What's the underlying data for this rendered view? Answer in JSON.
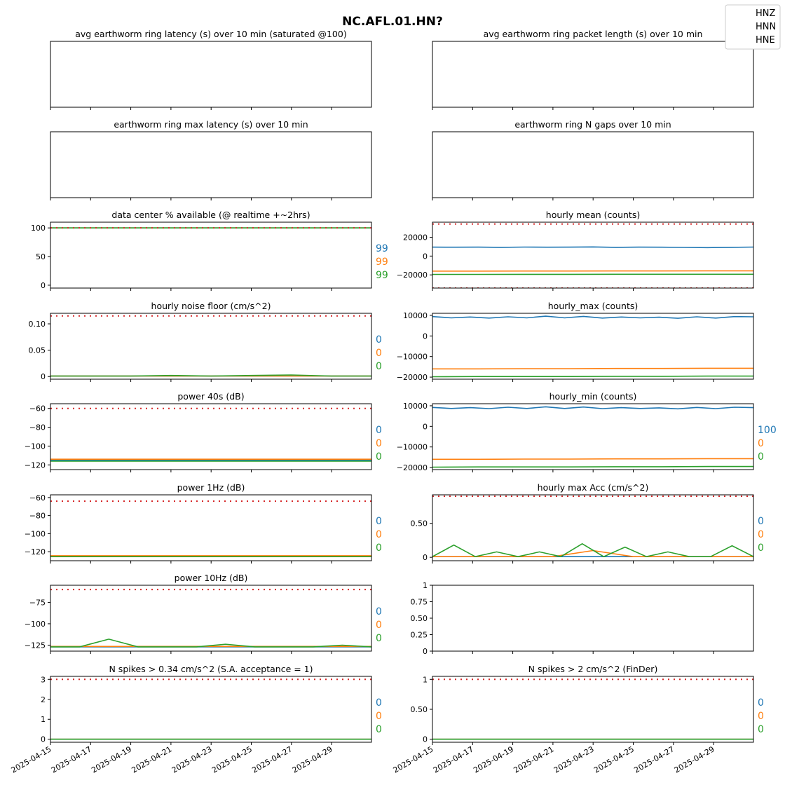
{
  "suptitle": "NC.AFL.01.HN?",
  "legend": {
    "placement": "top-right",
    "entries": [
      "HNZ",
      "HNN",
      "HNE"
    ]
  },
  "colors": {
    "HNZ": "#1f77b4",
    "HNN": "#ff7f0e",
    "HNE": "#2ca02c",
    "threshold": "#d62728",
    "axis": "#000000"
  },
  "x_axis": {
    "range": [
      "2025-04-15",
      "2025-05-01"
    ],
    "tick_labels": [
      "2025-04-15",
      "2025-04-17",
      "2025-04-19",
      "2025-04-21",
      "2025-04-23",
      "2025-04-25",
      "2025-04-27",
      "2025-04-29"
    ]
  },
  "chart_data": [
    {
      "id": "p00",
      "type": "line",
      "title": "avg earthworm ring latency (s)   over 10 min (saturated @100)",
      "empty": true
    },
    {
      "id": "p01",
      "type": "line",
      "title": "avg earthworm ring packet length (s)   over 10 min",
      "empty": true
    },
    {
      "id": "p10",
      "type": "line",
      "title": "earthworm ring max latency (s)   over 10 min",
      "empty": true
    },
    {
      "id": "p11",
      "type": "line",
      "title": "earthworm ring N gaps   over 10 min",
      "empty": true
    },
    {
      "id": "p20",
      "type": "line",
      "title": "data center % available (@ realtime +~2hrs)",
      "ylim": [
        -5,
        110
      ],
      "yticks": [
        0,
        50,
        100
      ],
      "threshold": [
        100
      ],
      "series": [
        {
          "name": "HNZ",
          "values": [
            100,
            100,
            100,
            100,
            100,
            100,
            100,
            100,
            100
          ]
        },
        {
          "name": "HNN",
          "values": [
            100,
            100,
            100,
            100,
            100,
            100,
            100,
            100,
            100
          ]
        },
        {
          "name": "HNE",
          "values": [
            100,
            100,
            100,
            100,
            100,
            100,
            100,
            100,
            100
          ]
        }
      ],
      "side_values": [
        "99",
        "99",
        "99"
      ]
    },
    {
      "id": "p21",
      "type": "line",
      "title": "hourly mean (counts)",
      "ylim": [
        -34000,
        36000
      ],
      "yticks": [
        -20000,
        0,
        20000
      ],
      "threshold": [
        34000,
        -34000
      ],
      "series": [
        {
          "name": "HNZ",
          "values": [
            9500,
            9400,
            9500,
            9300,
            9600,
            9400,
            9500,
            9700,
            9300,
            9500,
            9400,
            9200,
            9000,
            9300,
            9600
          ]
        },
        {
          "name": "HNN",
          "values": [
            -16000,
            -16000,
            -15900,
            -15900,
            -15800,
            -15800,
            -15700,
            -15700
          ]
        },
        {
          "name": "HNE",
          "values": [
            -19500,
            -19500,
            -19400,
            -19400,
            -19300,
            -19300,
            -19300,
            -19300
          ]
        }
      ],
      "side_values": []
    },
    {
      "id": "p30",
      "type": "line",
      "title": "hourly noise floor (cm/s^2)",
      "ylim": [
        -0.005,
        0.12
      ],
      "yticks": [
        0.0,
        0.05,
        0.1
      ],
      "threshold": [
        0.115
      ],
      "series": [
        {
          "name": "HNZ",
          "values": [
            0.001,
            0.001,
            0.001,
            0.001,
            0.001,
            0.001,
            0.001,
            0.001,
            0.001
          ]
        },
        {
          "name": "HNN",
          "values": [
            0.001,
            0.001,
            0.001,
            0.001,
            0.001,
            0.001,
            0.001,
            0.001,
            0.001
          ]
        },
        {
          "name": "HNE",
          "values": [
            0.001,
            0.001,
            0.001,
            0.002,
            0.001,
            0.002,
            0.003,
            0.001,
            0.001
          ]
        }
      ],
      "side_values": [
        "0",
        "0",
        "0"
      ]
    },
    {
      "id": "p31",
      "type": "line",
      "title": "hourly_max (counts)",
      "ylim": [
        -21000,
        11000
      ],
      "yticks": [
        -20000,
        -10000,
        0,
        10000
      ],
      "threshold": [],
      "series": [
        {
          "name": "HNZ",
          "values": [
            9400,
            8800,
            9200,
            8700,
            9300,
            8800,
            9600,
            8800,
            9500,
            8700,
            9200,
            8800,
            9100,
            8600,
            9300,
            8700,
            9400,
            9300
          ]
        },
        {
          "name": "HNN",
          "values": [
            -16000,
            -16000,
            -15900,
            -15900,
            -15800,
            -15800,
            -15700,
            -15700
          ]
        },
        {
          "name": "HNE",
          "values": [
            -19800,
            -19700,
            -19700,
            -19700,
            -19600,
            -19600,
            -19500,
            -19500
          ]
        }
      ],
      "side_values": []
    },
    {
      "id": "p40",
      "type": "line",
      "title": "power 40s (dB)",
      "ylim": [
        -125,
        -55
      ],
      "yticks": [
        -120,
        -100,
        -80,
        -60
      ],
      "threshold": [
        -60
      ],
      "series": [
        {
          "name": "HNZ",
          "values": [
            -115,
            -115,
            -115,
            -115,
            -115,
            -115,
            -115,
            -115,
            -115
          ]
        },
        {
          "name": "HNN",
          "values": [
            -114,
            -114,
            -114,
            -114,
            -114,
            -114,
            -114,
            -114,
            -114
          ]
        },
        {
          "name": "HNE",
          "values": [
            -116,
            -116,
            -116,
            -116,
            -116,
            -116,
            -116,
            -116,
            -116
          ]
        }
      ],
      "side_values": [
        "0",
        "0",
        "0"
      ]
    },
    {
      "id": "p41",
      "type": "line",
      "title": "hourly_min (counts)",
      "ylim": [
        -21000,
        11000
      ],
      "yticks": [
        -20000,
        -10000,
        0,
        10000
      ],
      "threshold": [],
      "series": [
        {
          "name": "HNZ",
          "values": [
            9200,
            8700,
            9100,
            8600,
            9300,
            8700,
            9500,
            8700,
            9400,
            8600,
            9100,
            8700,
            9000,
            8500,
            9200,
            8600,
            9300,
            9100
          ]
        },
        {
          "name": "HNN",
          "values": [
            -16000,
            -16000,
            -15900,
            -15900,
            -15800,
            -15800,
            -15700,
            -15700
          ]
        },
        {
          "name": "HNE",
          "values": [
            -19800,
            -19700,
            -19700,
            -19700,
            -19600,
            -19600,
            -19500,
            -19500
          ]
        }
      ],
      "side_values": [
        "100",
        "0",
        "0"
      ]
    },
    {
      "id": "p50",
      "type": "line",
      "title": "power 1Hz (dB)",
      "ylim": [
        -130,
        -57
      ],
      "yticks": [
        -120,
        -100,
        -80,
        -60
      ],
      "threshold": [
        -64
      ],
      "series": [
        {
          "name": "HNZ",
          "values": [
            -125,
            -125,
            -125,
            -125,
            -125,
            -125,
            -125,
            -125,
            -125
          ]
        },
        {
          "name": "HNN",
          "values": [
            -124.5,
            -124.5,
            -124.5,
            -124.5,
            -124.5,
            -124.5,
            -124.5,
            -124.5,
            -124.5
          ]
        },
        {
          "name": "HNE",
          "values": [
            -125.5,
            -125.5,
            -125.5,
            -125.5,
            -125.5,
            -125.5,
            -125.5,
            -125.5,
            -125.5
          ]
        }
      ],
      "side_values": [
        "0",
        "0",
        "0"
      ]
    },
    {
      "id": "p51",
      "type": "line",
      "title": "hourly max Acc (cm/s^2)",
      "ylim": [
        -0.05,
        0.92
      ],
      "yticks": [
        0.0,
        0.5
      ],
      "threshold": [
        0.9
      ],
      "series": [
        {
          "name": "HNZ",
          "values": [
            0.01,
            0.01,
            0.01,
            0.01,
            0.01,
            0.01,
            0.01,
            0.01,
            0.01
          ]
        },
        {
          "name": "HNN",
          "values": [
            0.01,
            0.01,
            0.01,
            0.01,
            0.1,
            0.01,
            0.01,
            0.01,
            0.01
          ]
        },
        {
          "name": "HNE",
          "values": [
            0.01,
            0.18,
            0.01,
            0.08,
            0.01,
            0.08,
            0.01,
            0.2,
            0.01,
            0.15,
            0.01,
            0.08,
            0.01,
            0.01,
            0.17,
            0.01
          ]
        }
      ],
      "side_values": [
        "0",
        "0",
        "0"
      ]
    },
    {
      "id": "p60",
      "type": "line",
      "title": "power 10Hz (dB)",
      "ylim": [
        -132,
        -55
      ],
      "yticks": [
        -125,
        -100,
        -75
      ],
      "threshold": [
        -60
      ],
      "series": [
        {
          "name": "HNZ",
          "values": [
            -127,
            -127,
            -127,
            -127,
            -127,
            -127,
            -127,
            -127,
            -127
          ]
        },
        {
          "name": "HNN",
          "values": [
            -126.5,
            -126.5,
            -126.5,
            -126.5,
            -126.5,
            -126.5,
            -126.5,
            -126.5,
            -126.5
          ]
        },
        {
          "name": "HNE",
          "values": [
            -127,
            -127,
            -118,
            -127,
            -127,
            -127,
            -124,
            -127,
            -127,
            -127,
            -125,
            -127
          ]
        }
      ],
      "side_values": [
        "0",
        "0",
        "0"
      ]
    },
    {
      "id": "p61",
      "type": "line",
      "title": "",
      "ylim": [
        0.0,
        1.0
      ],
      "yticks": [
        0.0,
        0.25,
        0.5,
        0.75,
        1.0
      ],
      "threshold": [],
      "series": [],
      "side_values": []
    },
    {
      "id": "p70",
      "type": "line",
      "title": "N spikes > 0.34 cm/s^2 (S.A. acceptance = 1)",
      "ylim": [
        -0.15,
        3.15
      ],
      "yticks": [
        0,
        1,
        2,
        3
      ],
      "threshold": [
        3
      ],
      "series": [
        {
          "name": "HNZ",
          "values": [
            0,
            0,
            0,
            0,
            0,
            0,
            0,
            0,
            0
          ]
        },
        {
          "name": "HNN",
          "values": [
            0,
            0,
            0,
            0,
            0,
            0,
            0,
            0,
            0
          ]
        },
        {
          "name": "HNE",
          "values": [
            0,
            0,
            0,
            0,
            0,
            0,
            0,
            0,
            0
          ]
        }
      ],
      "side_values": [
        "0",
        "0",
        "0"
      ]
    },
    {
      "id": "p71",
      "type": "line",
      "title": "N spikes > 2 cm/s^2 (FinDer)",
      "ylim": [
        -0.05,
        1.05
      ],
      "yticks": [
        0.0,
        0.5,
        1.0
      ],
      "threshold": [
        1.0
      ],
      "series": [
        {
          "name": "HNZ",
          "values": [
            0,
            0,
            0,
            0,
            0,
            0,
            0,
            0,
            0
          ]
        },
        {
          "name": "HNN",
          "values": [
            0,
            0,
            0,
            0,
            0,
            0,
            0,
            0,
            0
          ]
        },
        {
          "name": "HNE",
          "values": [
            0,
            0,
            0,
            0,
            0,
            0,
            0,
            0,
            0
          ]
        }
      ],
      "side_values": [
        "0",
        "0",
        "0"
      ]
    }
  ]
}
